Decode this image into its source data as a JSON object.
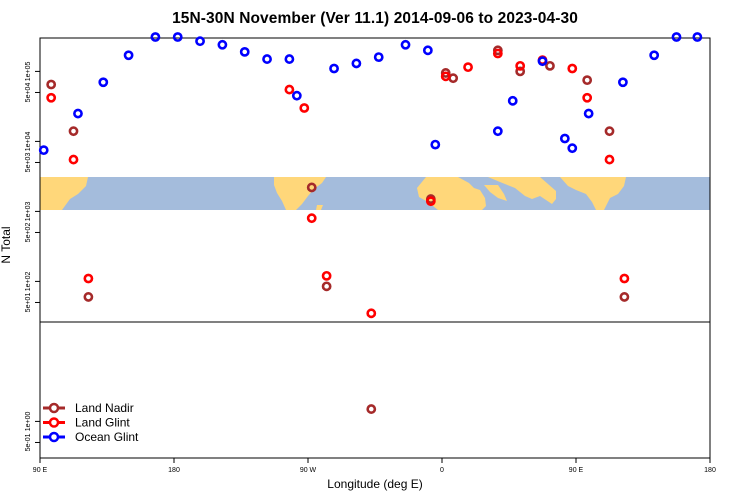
{
  "chart_data": {
    "type": "scatter",
    "title": "15N-30N November (Ver 11.1)   2014-09-06 to 2023-04-30",
    "xlabel": "Longitude (deg E)",
    "ylabel": "N Total",
    "y_scale": "log",
    "xlim": [
      90,
      540
    ],
    "ylim": [
      0.3,
      300000
    ],
    "x_tick_values": [
      90,
      180,
      270,
      360,
      450,
      540
    ],
    "x_tick_labels": [
      "90 E",
      "180",
      "90 W",
      "0",
      "90 E",
      "180"
    ],
    "y_tick_values": [
      0.5,
      1,
      50,
      100,
      500,
      1000,
      5000,
      10000,
      50000,
      100000
    ],
    "y_tick_labels": [
      "5e-01",
      "1e+00",
      "5e+01",
      "1e+02",
      "5e+02",
      "1e+03",
      "5e+03",
      "1e+04",
      "5e+04",
      "1e+05"
    ],
    "colors": {
      "land_nadir": "#a52a2a",
      "land_glint": "#ff0000",
      "ocean_glint": "#0000ff",
      "land": "#ffd77a",
      "ocean": "#a4bcdc"
    },
    "legend_position": "bottom-left",
    "series": [
      {
        "name": "Land Nadir",
        "color": "#a52a2a",
        "points": [
          [
            97.5,
            65000
          ],
          [
            112.5,
            14000
          ],
          [
            122.5,
            60
          ],
          [
            272.5,
            2200
          ],
          [
            282.5,
            85
          ],
          [
            312.5,
            1.5
          ],
          [
            352.5,
            1500
          ],
          [
            362.5,
            95000
          ],
          [
            367.5,
            80000
          ],
          [
            397.5,
            200000
          ],
          [
            412.5,
            100000
          ],
          [
            432.5,
            120000
          ],
          [
            457.5,
            75000
          ],
          [
            472.5,
            14000
          ],
          [
            482.5,
            60
          ]
        ]
      },
      {
        "name": "Land Glint",
        "color": "#ff0000",
        "points": [
          [
            97.5,
            42000
          ],
          [
            112.5,
            5500
          ],
          [
            122.5,
            110
          ],
          [
            257.5,
            55000
          ],
          [
            267.5,
            30000
          ],
          [
            272.5,
            800
          ],
          [
            282.5,
            120
          ],
          [
            312.5,
            35
          ],
          [
            352.5,
            1400
          ],
          [
            362.5,
            85000
          ],
          [
            377.5,
            115000
          ],
          [
            397.5,
            180000
          ],
          [
            412.5,
            120000
          ],
          [
            427.5,
            145000
          ],
          [
            447.5,
            110000
          ],
          [
            457.5,
            42000
          ],
          [
            472.5,
            5500
          ],
          [
            482.5,
            110
          ]
        ]
      },
      {
        "name": "Ocean Glint",
        "color": "#0000ff",
        "points": [
          [
            92.5,
            7500
          ],
          [
            115.5,
            25000
          ],
          [
            132.5,
            70000
          ],
          [
            149.5,
            170000
          ],
          [
            167.5,
            310000
          ],
          [
            182.5,
            310000
          ],
          [
            197.5,
            270000
          ],
          [
            212.5,
            240000
          ],
          [
            227.5,
            190000
          ],
          [
            242.5,
            150000
          ],
          [
            257.5,
            150000
          ],
          [
            262.5,
            45000
          ],
          [
            287.5,
            110000
          ],
          [
            302.5,
            130000
          ],
          [
            317.5,
            160000
          ],
          [
            335.5,
            240000
          ],
          [
            350.5,
            200000
          ],
          [
            355.5,
            9000
          ],
          [
            397.5,
            14000
          ],
          [
            407.5,
            38000
          ],
          [
            427.5,
            140000
          ],
          [
            442.5,
            11000
          ],
          [
            447.5,
            8000
          ],
          [
            458.5,
            25000
          ],
          [
            481.5,
            70000
          ],
          [
            502.5,
            170000
          ],
          [
            517.5,
            310000
          ],
          [
            531.5,
            310000
          ]
        ]
      }
    ]
  }
}
